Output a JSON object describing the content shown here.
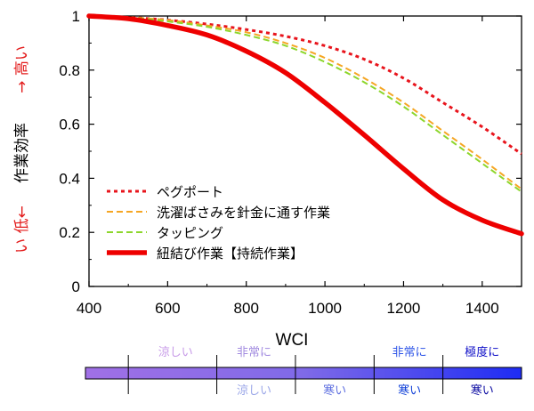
{
  "chart_data": {
    "type": "line",
    "xlabel": "WCI",
    "ylabel": {
      "low_side": "い 低←",
      "main": "作業効率",
      "high_side": "→ 高い"
    },
    "xlim": [
      400,
      1500
    ],
    "ylim": [
      0,
      1
    ],
    "xticks": [
      400,
      600,
      800,
      1000,
      1200,
      1400
    ],
    "yticks": [
      0,
      0.2,
      0.4,
      0.6,
      0.8,
      1
    ],
    "ytick_labels": [
      "0",
      "0.2",
      "0.4",
      "0.6",
      "0.8",
      "1"
    ],
    "legend_position": "lower-left",
    "series": [
      {
        "name": "ペグポート",
        "color": "#e8141c",
        "style": "dotted",
        "points": [
          [
            400,
            1.0
          ],
          [
            500,
            0.995
          ],
          [
            600,
            0.985
          ],
          [
            700,
            0.97
          ],
          [
            800,
            0.95
          ],
          [
            900,
            0.925
          ],
          [
            1000,
            0.89
          ],
          [
            1100,
            0.84
          ],
          [
            1200,
            0.77
          ],
          [
            1300,
            0.68
          ],
          [
            1400,
            0.59
          ],
          [
            1500,
            0.49
          ]
        ]
      },
      {
        "name": "洗濯ばさみを針金に通す作業",
        "color": "#f5a623",
        "style": "dashed",
        "points": [
          [
            400,
            1.0
          ],
          [
            500,
            0.995
          ],
          [
            600,
            0.985
          ],
          [
            700,
            0.965
          ],
          [
            800,
            0.94
          ],
          [
            900,
            0.9
          ],
          [
            1000,
            0.845
          ],
          [
            1100,
            0.77
          ],
          [
            1200,
            0.68
          ],
          [
            1300,
            0.575
          ],
          [
            1400,
            0.47
          ],
          [
            1500,
            0.36
          ]
        ]
      },
      {
        "name": "タッピング",
        "color": "#8dd62c",
        "style": "dashed",
        "points": [
          [
            400,
            1.0
          ],
          [
            500,
            0.995
          ],
          [
            600,
            0.98
          ],
          [
            700,
            0.96
          ],
          [
            800,
            0.93
          ],
          [
            900,
            0.89
          ],
          [
            1000,
            0.83
          ],
          [
            1100,
            0.755
          ],
          [
            1200,
            0.665
          ],
          [
            1300,
            0.56
          ],
          [
            1400,
            0.455
          ],
          [
            1500,
            0.35
          ]
        ]
      },
      {
        "name": "紐結び作業【持続作業】",
        "color": "#ee0000",
        "style": "solid-thick",
        "points": [
          [
            400,
            1.0
          ],
          [
            500,
            0.99
          ],
          [
            600,
            0.965
          ],
          [
            700,
            0.93
          ],
          [
            800,
            0.87
          ],
          [
            900,
            0.79
          ],
          [
            1000,
            0.68
          ],
          [
            1100,
            0.56
          ],
          [
            1200,
            0.435
          ],
          [
            1300,
            0.32
          ],
          [
            1400,
            0.245
          ],
          [
            1500,
            0.195
          ]
        ]
      }
    ],
    "wci_bands": {
      "boundaries": [
        400,
        500,
        725,
        925,
        1125,
        1300,
        1500
      ],
      "colors": [
        "#a070e6",
        "#8c6de8",
        "#7f6ae8",
        "#6a61e8",
        "#4c4ff0",
        "#2a32f2"
      ],
      "labels": [
        {
          "text": "涼しい",
          "x": 620,
          "row": "top",
          "color": "#c79ae8"
        },
        {
          "text": "非常に",
          "x": 820,
          "row": "top",
          "color": "#a28be0"
        },
        {
          "text": "涼しい",
          "x": 820,
          "row": "bottom",
          "color": "#9aa6e8"
        },
        {
          "text": "寒い",
          "x": 1025,
          "row": "bottom",
          "color": "#5e6fe0"
        },
        {
          "text": "非常に",
          "x": 1215,
          "row": "top",
          "color": "#2f56e8"
        },
        {
          "text": "寒い",
          "x": 1215,
          "row": "bottom",
          "color": "#1040d8"
        },
        {
          "text": "極度に",
          "x": 1400,
          "row": "top",
          "color": "#1010c8"
        },
        {
          "text": "寒い",
          "x": 1400,
          "row": "bottom",
          "color": "#0808a0"
        }
      ]
    }
  }
}
